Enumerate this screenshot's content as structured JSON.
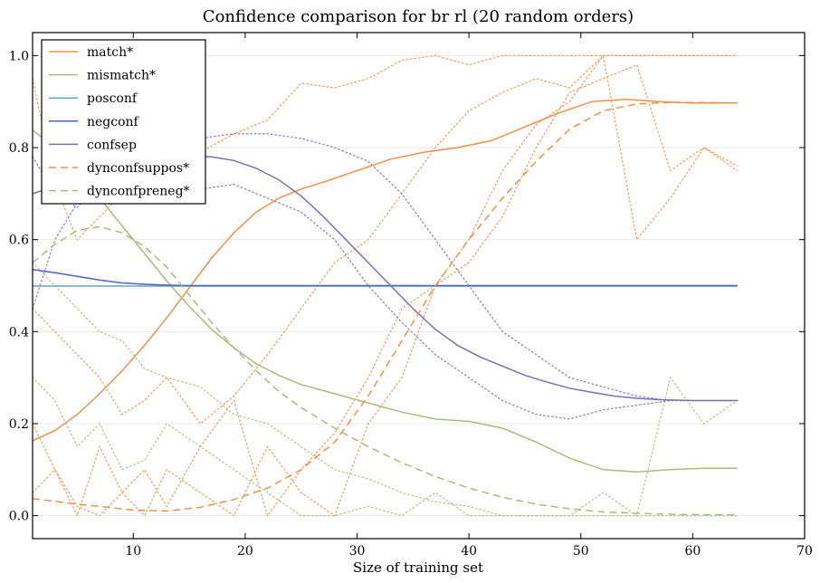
{
  "chart_data": {
    "type": "line",
    "title": "Confidence comparison for br rl (20 random orders)",
    "xlabel": "Size of training set",
    "ylabel": "",
    "xlim": [
      1,
      70
    ],
    "ylim": [
      -0.05,
      1.05
    ],
    "xticks": [
      10,
      20,
      30,
      40,
      50,
      60,
      70
    ],
    "yticks": [
      0.0,
      0.2,
      0.4,
      0.6,
      0.8,
      1.0
    ],
    "ytick_labels": [
      "0.0",
      "0.2",
      "0.4",
      "0.6",
      "0.8",
      "1.0"
    ],
    "grid": "horizontal",
    "legend_position": "top-left",
    "colors": {
      "match": "#f0914a",
      "mismatch": "#a8bc7a",
      "posconf": "#6aa0c8",
      "negconf": "#4a64c0",
      "confsep": "#7a70b4"
    },
    "series": [
      {
        "name": "match*",
        "style": "solid",
        "color": "#f0914a",
        "x": [
          1,
          3,
          5,
          7,
          9,
          11,
          13,
          15,
          17,
          19,
          21,
          23,
          25,
          27,
          30,
          33,
          36,
          39,
          42,
          45,
          48,
          51,
          54,
          57,
          60,
          64
        ],
        "y": [
          0.163,
          0.185,
          0.22,
          0.265,
          0.315,
          0.37,
          0.43,
          0.495,
          0.56,
          0.615,
          0.66,
          0.69,
          0.71,
          0.725,
          0.75,
          0.775,
          0.79,
          0.8,
          0.815,
          0.845,
          0.875,
          0.9,
          0.905,
          0.9,
          0.897,
          0.897
        ]
      },
      {
        "name": "mismatch*",
        "style": "solid",
        "color": "#a8bc7a",
        "x": [
          1,
          3,
          5,
          7,
          9,
          11,
          13,
          15,
          17,
          19,
          21,
          23,
          25,
          28,
          31,
          34,
          37,
          40,
          43,
          46,
          49,
          52,
          55,
          58,
          61,
          64
        ],
        "y": [
          0.838,
          0.8,
          0.75,
          0.69,
          0.63,
          0.57,
          0.51,
          0.455,
          0.405,
          0.365,
          0.33,
          0.305,
          0.285,
          0.265,
          0.245,
          0.225,
          0.21,
          0.205,
          0.19,
          0.16,
          0.125,
          0.1,
          0.095,
          0.1,
          0.103,
          0.103
        ]
      },
      {
        "name": "posconf",
        "style": "solid",
        "color": "#6aa0c8",
        "x": [
          1,
          64
        ],
        "y": [
          0.499,
          0.499
        ]
      },
      {
        "name": "negconf",
        "style": "solid",
        "color": "#4a64c0",
        "x": [
          1,
          3,
          5,
          7,
          9,
          11,
          13,
          15,
          20,
          30,
          40,
          50,
          64
        ],
        "y": [
          0.535,
          0.528,
          0.52,
          0.512,
          0.506,
          0.503,
          0.501,
          0.5,
          0.5,
          0.5,
          0.5,
          0.5,
          0.5
        ]
      },
      {
        "name": "confsep",
        "style": "solid",
        "color": "#7a70b4",
        "x": [
          1,
          3,
          5,
          7,
          9,
          11,
          13,
          15,
          17,
          19,
          21,
          23,
          25,
          27,
          29,
          31,
          33,
          35,
          37,
          39,
          41,
          43,
          45,
          47,
          49,
          51,
          53,
          55,
          57,
          60,
          64
        ],
        "y": [
          0.7,
          0.715,
          0.735,
          0.75,
          0.765,
          0.772,
          0.778,
          0.782,
          0.78,
          0.772,
          0.755,
          0.73,
          0.695,
          0.65,
          0.6,
          0.55,
          0.5,
          0.45,
          0.405,
          0.37,
          0.345,
          0.325,
          0.305,
          0.29,
          0.277,
          0.268,
          0.26,
          0.255,
          0.252,
          0.25,
          0.25
        ]
      },
      {
        "name": "dynconfsuppos*",
        "style": "dashed",
        "color": "#f0914a",
        "x": [
          1,
          4,
          7,
          10,
          13,
          16,
          19,
          22,
          25,
          28,
          31,
          34,
          37,
          40,
          43,
          46,
          49,
          52,
          55,
          58,
          61,
          64
        ],
        "y": [
          0.037,
          0.028,
          0.02,
          0.012,
          0.01,
          0.018,
          0.035,
          0.06,
          0.1,
          0.16,
          0.26,
          0.38,
          0.5,
          0.6,
          0.69,
          0.77,
          0.84,
          0.88,
          0.895,
          0.898,
          0.898,
          0.897
        ]
      },
      {
        "name": "dynconfpreneg*",
        "style": "dashed",
        "color": "#a8bc7a",
        "x": [
          1,
          3,
          5,
          7,
          9,
          11,
          13,
          15,
          17,
          19,
          21,
          23,
          25,
          28,
          31,
          34,
          37,
          40,
          43,
          46,
          49,
          52,
          55,
          58,
          61,
          64
        ],
        "y": [
          0.55,
          0.59,
          0.62,
          0.628,
          0.615,
          0.585,
          0.54,
          0.48,
          0.42,
          0.365,
          0.315,
          0.27,
          0.235,
          0.19,
          0.15,
          0.115,
          0.085,
          0.06,
          0.04,
          0.025,
          0.015,
          0.008,
          0.005,
          0.003,
          0.002,
          0.002
        ]
      }
    ],
    "dotted_runs": [
      {
        "color": "#f0914a",
        "x": [
          1,
          3,
          5,
          7,
          9,
          11,
          13,
          16,
          19,
          22,
          25,
          28,
          31,
          34,
          37,
          40,
          43,
          46,
          49,
          52,
          55,
          58,
          61,
          64
        ],
        "y": [
          0.95,
          0.72,
          0.6,
          0.65,
          0.7,
          0.78,
          0.73,
          0.79,
          0.83,
          0.86,
          0.94,
          0.93,
          0.95,
          0.99,
          1.0,
          0.98,
          1.0,
          1.0,
          1.0,
          1.0,
          1.0,
          1.0,
          1.0,
          1.0
        ]
      },
      {
        "color": "#f0914a",
        "x": [
          1,
          3,
          5,
          7,
          9,
          11,
          13,
          16,
          19,
          22,
          25,
          28,
          31,
          34,
          37,
          40,
          43,
          46,
          49,
          52,
          55,
          58,
          61,
          64
        ],
        "y": [
          0.45,
          0.4,
          0.35,
          0.3,
          0.22,
          0.25,
          0.3,
          0.2,
          0.26,
          0.35,
          0.45,
          0.55,
          0.6,
          0.7,
          0.8,
          0.88,
          0.92,
          0.95,
          0.93,
          1.0,
          0.6,
          0.69,
          0.8,
          0.76
        ]
      },
      {
        "color": "#f0914a",
        "x": [
          1,
          3,
          5,
          7,
          9,
          11,
          13,
          16,
          19,
          22,
          25,
          28,
          31,
          34,
          37,
          40,
          43,
          46,
          49,
          52,
          55,
          58,
          61,
          64
        ],
        "y": [
          0.05,
          0.1,
          0.0,
          0.15,
          0.05,
          0.1,
          0.02,
          0.15,
          0.25,
          0.0,
          0.1,
          0.18,
          0.3,
          0.45,
          0.5,
          0.55,
          0.65,
          0.8,
          0.92,
          0.95,
          0.98,
          0.75,
          0.8,
          0.75
        ]
      },
      {
        "color": "#f0914a",
        "x": [
          1,
          3,
          5,
          7,
          9,
          11,
          13,
          16,
          19,
          22,
          25,
          28,
          31,
          34,
          37,
          40,
          43,
          46,
          49,
          52,
          55,
          58,
          61,
          64
        ],
        "y": [
          0.2,
          0.1,
          0.02,
          0.0,
          0.05,
          0.0,
          0.1,
          0.05,
          0.0,
          0.15,
          0.05,
          0.0,
          0.2,
          0.3,
          0.5,
          0.6,
          0.75,
          0.85,
          0.9,
          1.0,
          1.0,
          1.0,
          1.0,
          1.0
        ]
      },
      {
        "color": "#a8bc7a",
        "x": [
          1,
          3,
          5,
          7,
          9,
          11,
          13,
          16,
          19,
          22,
          25,
          28,
          31,
          34,
          37,
          40,
          43,
          46,
          49,
          52,
          55,
          58,
          61,
          64
        ],
        "y": [
          0.55,
          0.5,
          0.45,
          0.4,
          0.38,
          0.32,
          0.3,
          0.28,
          0.22,
          0.2,
          0.15,
          0.1,
          0.08,
          0.05,
          0.03,
          0.02,
          0.0,
          0.0,
          0.0,
          0.05,
          0.0,
          0.3,
          0.2,
          0.25
        ]
      },
      {
        "color": "#a8bc7a",
        "x": [
          1,
          3,
          5,
          7,
          9,
          11,
          13,
          16,
          19,
          22,
          25,
          28,
          31,
          34,
          37,
          40,
          43,
          46,
          49,
          52,
          55,
          58,
          61,
          64
        ],
        "y": [
          0.3,
          0.25,
          0.15,
          0.2,
          0.1,
          0.12,
          0.2,
          0.15,
          0.1,
          0.05,
          0.0,
          0.0,
          0.02,
          0.0,
          0.05,
          0.0,
          0.0,
          0.0,
          0.0,
          0.0,
          0.0,
          0.0,
          0.0,
          0.0
        ]
      },
      {
        "color": "#7a70b4",
        "x": [
          1,
          3,
          5,
          7,
          9,
          11,
          13,
          16,
          19,
          22,
          25,
          28,
          31,
          34,
          37,
          40,
          43,
          46,
          49,
          52,
          55,
          58,
          61,
          64
        ],
        "y": [
          0.78,
          0.7,
          0.67,
          0.72,
          0.75,
          0.78,
          0.81,
          0.82,
          0.83,
          0.83,
          0.82,
          0.8,
          0.77,
          0.7,
          0.6,
          0.5,
          0.4,
          0.35,
          0.3,
          0.28,
          0.26,
          0.25,
          0.25,
          0.25
        ]
      },
      {
        "color": "#7a70b4",
        "x": [
          1,
          3,
          5,
          7,
          9,
          11,
          13,
          16,
          19,
          22,
          25,
          28,
          31,
          34,
          37,
          40,
          43,
          46,
          49,
          52,
          55,
          58,
          61,
          64
        ],
        "y": [
          0.45,
          0.6,
          0.68,
          0.7,
          0.71,
          0.72,
          0.7,
          0.71,
          0.72,
          0.69,
          0.66,
          0.6,
          0.5,
          0.42,
          0.35,
          0.3,
          0.25,
          0.22,
          0.21,
          0.23,
          0.24,
          0.25,
          0.25,
          0.25
        ]
      }
    ]
  }
}
